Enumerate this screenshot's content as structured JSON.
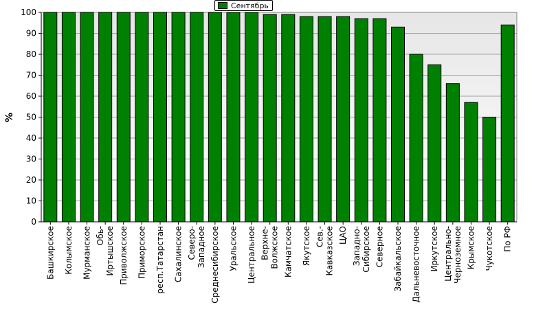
{
  "chart_data": {
    "type": "bar",
    "ylabel": "%",
    "xlabel": "",
    "ylim": [
      0,
      100
    ],
    "yticks": [
      0,
      10,
      20,
      30,
      40,
      50,
      60,
      70,
      80,
      90,
      100
    ],
    "grid": true,
    "legend_position": "top-center",
    "series": [
      {
        "name": "Сентябрь",
        "color": "#008000",
        "values": [
          100,
          100,
          100,
          100,
          100,
          100,
          100,
          100,
          100,
          100,
          100,
          100,
          99,
          99,
          98,
          98,
          98,
          97,
          97,
          93,
          80,
          75,
          66,
          57,
          50,
          94
        ]
      }
    ],
    "categories": [
      "Башкирское",
      "Колымское",
      "Мурманское",
      "Обь-Иртышское",
      "Приволжское",
      "Приморское",
      "респ.Татарстан",
      "Сахалинское",
      "Северо-Западное",
      "Среднесибирское",
      "Уральское",
      "Центральное",
      "Верхне-Волжское",
      "Камчатское",
      "Якутское",
      "Сев.-Кавказское",
      "ЦАО",
      "Западно-Сибирское",
      "Северное",
      "Забайкальское",
      "Дальневосточное",
      "Иркутское",
      "Центрально-Черноземное",
      "Крымское",
      "Чукотское",
      "По РФ"
    ],
    "category_lines": [
      [
        "Башкирское"
      ],
      [
        "Колымское"
      ],
      [
        "Мурманское"
      ],
      [
        "Обь-",
        "Иртышское"
      ],
      [
        "Приволжское"
      ],
      [
        "Приморское"
      ],
      [
        "респ.Татарстан"
      ],
      [
        "Сахалинское"
      ],
      [
        "Северо-",
        "Западное"
      ],
      [
        "Среднесибирское"
      ],
      [
        "Уральское"
      ],
      [
        "Центральное"
      ],
      [
        "Верхне-",
        "Волжское"
      ],
      [
        "Камчатское"
      ],
      [
        "Якутское"
      ],
      [
        "Сев.-",
        "Кавказское"
      ],
      [
        "ЦАО"
      ],
      [
        "Западно-",
        "Сибирское"
      ],
      [
        "Северное"
      ],
      [
        "Забайкальское"
      ],
      [
        "Дальневосточное"
      ],
      [
        "Иркутское"
      ],
      [
        "Центрально-",
        "Черноземное"
      ],
      [
        "Крымское"
      ],
      [
        "Чукотское"
      ],
      [
        "По РФ"
      ]
    ]
  }
}
